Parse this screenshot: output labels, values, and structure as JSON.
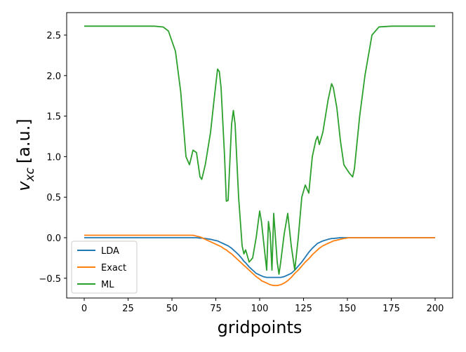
{
  "chart_data": {
    "type": "line",
    "x_label": "gridpoints",
    "y_label": {
      "main": "v",
      "sub": "xc",
      "rest": "[a.u.]"
    },
    "x": [
      0,
      10,
      20,
      30,
      40,
      45,
      48,
      52,
      55,
      58,
      60,
      62,
      64,
      66,
      67,
      69,
      72,
      74,
      76,
      77,
      78,
      80,
      81,
      82,
      84,
      85,
      86,
      88,
      90,
      91,
      92,
      94,
      96,
      98,
      100,
      101,
      102,
      104,
      105,
      106,
      107,
      108,
      110,
      111,
      112,
      114,
      116,
      118,
      120,
      122,
      124,
      126,
      128,
      130,
      132,
      133,
      134,
      136,
      139,
      141,
      142,
      144,
      146,
      148,
      151,
      153,
      154,
      157,
      160,
      164,
      168,
      175,
      185,
      200
    ],
    "series": [
      {
        "name": "LDA",
        "color": "#1f77b4",
        "values": [
          0,
          0,
          0,
          0,
          0,
          0,
          0,
          0,
          0,
          0,
          0,
          0,
          0,
          -0.005,
          -0.005,
          -0.01,
          -0.02,
          -0.03,
          -0.04,
          -0.05,
          -0.06,
          -0.08,
          -0.09,
          -0.1,
          -0.13,
          -0.15,
          -0.17,
          -0.21,
          -0.26,
          -0.29,
          -0.31,
          -0.36,
          -0.4,
          -0.44,
          -0.46,
          -0.47,
          -0.48,
          -0.49,
          -0.49,
          -0.49,
          -0.49,
          -0.49,
          -0.49,
          -0.49,
          -0.49,
          -0.48,
          -0.46,
          -0.44,
          -0.4,
          -0.35,
          -0.3,
          -0.24,
          -0.18,
          -0.13,
          -0.09,
          -0.07,
          -0.06,
          -0.04,
          -0.02,
          -0.01,
          -0.01,
          -0.005,
          0,
          0,
          0,
          0,
          0,
          0,
          0,
          0,
          0,
          0,
          0,
          0
        ]
      },
      {
        "name": "Exact",
        "color": "#ff7f0e",
        "values": [
          0.03,
          0.03,
          0.03,
          0.03,
          0.03,
          0.03,
          0.03,
          0.03,
          0.03,
          0.03,
          0.03,
          0.03,
          0.02,
          0.01,
          0,
          -0.02,
          -0.05,
          -0.07,
          -0.09,
          -0.1,
          -0.11,
          -0.14,
          -0.15,
          -0.17,
          -0.2,
          -0.22,
          -0.24,
          -0.28,
          -0.32,
          -0.34,
          -0.36,
          -0.4,
          -0.44,
          -0.48,
          -0.51,
          -0.53,
          -0.54,
          -0.56,
          -0.57,
          -0.58,
          -0.585,
          -0.59,
          -0.59,
          -0.585,
          -0.58,
          -0.56,
          -0.53,
          -0.49,
          -0.44,
          -0.4,
          -0.35,
          -0.3,
          -0.26,
          -0.21,
          -0.17,
          -0.15,
          -0.13,
          -0.1,
          -0.07,
          -0.05,
          -0.04,
          -0.03,
          -0.02,
          -0.01,
          0,
          0,
          0,
          0,
          0,
          0,
          0,
          0,
          0,
          0
        ]
      },
      {
        "name": "ML",
        "color": "#2ca02c",
        "values": [
          2.61,
          2.61,
          2.61,
          2.61,
          2.61,
          2.6,
          2.55,
          2.3,
          1.8,
          1.0,
          0.9,
          1.08,
          1.05,
          0.75,
          0.72,
          0.9,
          1.3,
          1.7,
          2.08,
          2.05,
          1.85,
          1.0,
          0.45,
          0.46,
          1.4,
          1.57,
          1.4,
          0.5,
          -0.1,
          -0.2,
          -0.15,
          -0.3,
          -0.25,
          0.0,
          0.33,
          0.2,
          0.0,
          -0.4,
          0.2,
          0.05,
          -0.4,
          0.3,
          -0.3,
          -0.45,
          -0.3,
          0.05,
          0.3,
          -0.1,
          -0.4,
          0.0,
          0.5,
          0.65,
          0.55,
          1.0,
          1.2,
          1.25,
          1.15,
          1.3,
          1.7,
          1.9,
          1.85,
          1.6,
          1.2,
          0.9,
          0.8,
          0.75,
          0.85,
          1.5,
          2.0,
          2.5,
          2.6,
          2.61,
          2.61,
          2.61
        ]
      }
    ],
    "xlim": [
      -10,
      210
    ],
    "ylim": [
      -0.744,
      2.777
    ],
    "xticks": [
      0,
      25,
      50,
      75,
      100,
      125,
      150,
      175,
      200
    ],
    "yticks": [
      {
        "value": -0.5,
        "label": "−0.5"
      },
      {
        "value": 0,
        "label": "0.0"
      },
      0.5,
      {
        "value": 1,
        "label": "1.0"
      },
      1.5,
      {
        "value": 2,
        "label": "2.0"
      },
      2.5
    ],
    "legend": "lower left",
    "grid": false
  }
}
